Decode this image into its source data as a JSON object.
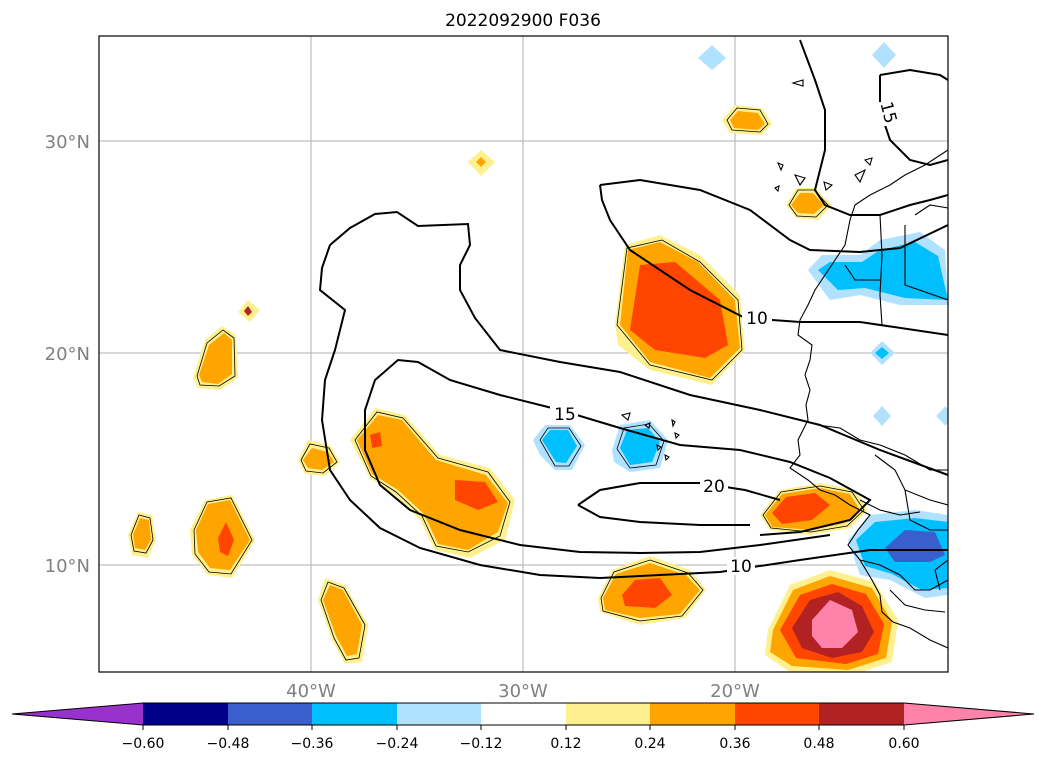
{
  "title": "2022092900 F036",
  "map": {
    "lat_labels": [
      "30°N",
      "20°N",
      "10°N"
    ],
    "lon_labels": [
      "40°W",
      "30°W",
      "20°W"
    ],
    "contour_labels": [
      "15",
      "10",
      "15",
      "20",
      "10"
    ]
  },
  "colorbar": {
    "tick_labels": [
      "−0.60",
      "−0.48",
      "−0.36",
      "−0.24",
      "−0.12",
      "0.12",
      "0.24",
      "0.36",
      "0.48",
      "0.60"
    ],
    "colors": {
      "under": "#9932cc",
      "c1": "#00008b",
      "c2": "#3a5fcd",
      "c3": "#00bfff",
      "c4": "#b0e2ff",
      "c5": "#ffffff",
      "c6": "#fff08f",
      "c7": "#ffa500",
      "c8": "#ff4500",
      "c9": "#b22222",
      "over": "#ff82ab"
    }
  }
}
